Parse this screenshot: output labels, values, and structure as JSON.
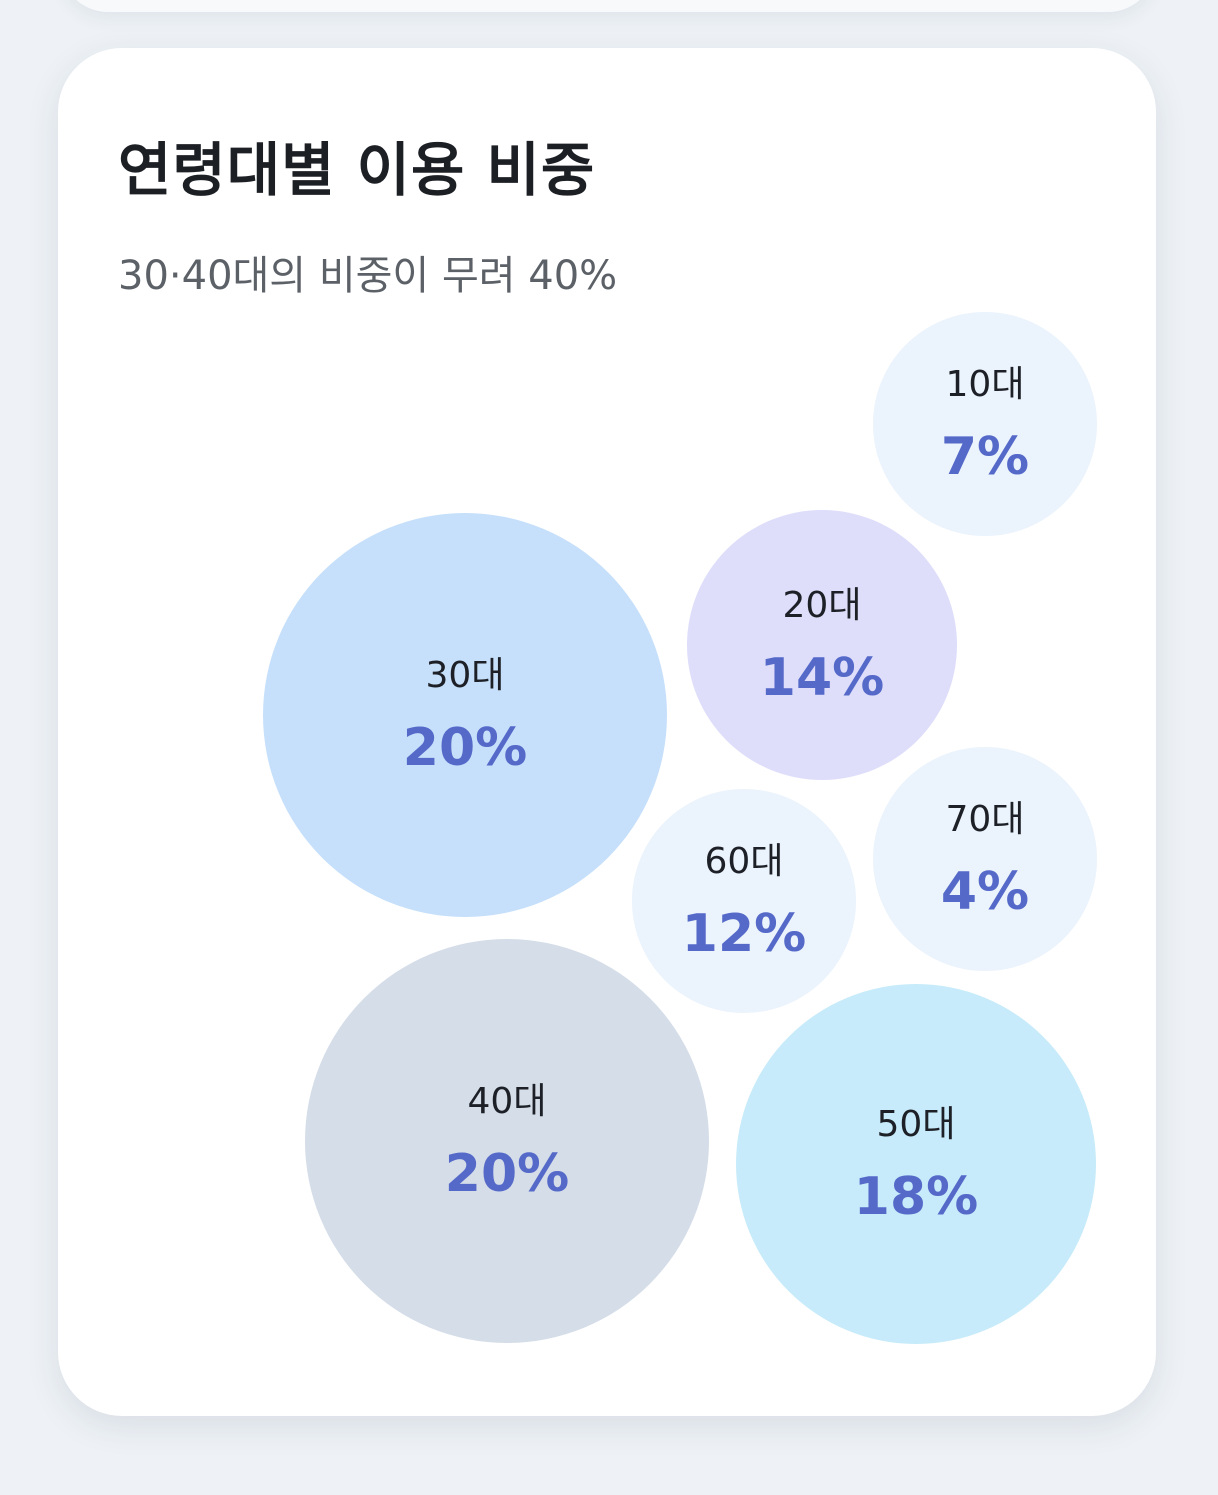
{
  "card": {
    "title": "연령대별 이용 비중",
    "subtitle": "30·40대의 비중이 무려 40%"
  },
  "chart_data": {
    "type": "bubble",
    "title": "연령대별 이용 비중",
    "subtitle": "30·40대의 비중이 무려 40%",
    "value_color": "#5569c9",
    "label_color": "#1d2026",
    "series": [
      {
        "label": "10대",
        "value": 7,
        "value_text": "7%",
        "color": "#ebf3fc"
      },
      {
        "label": "20대",
        "value": 14,
        "value_text": "14%",
        "color": "#dedefb"
      },
      {
        "label": "30대",
        "value": 20,
        "value_text": "20%",
        "color": "#c6e0fb"
      },
      {
        "label": "40대",
        "value": 20,
        "value_text": "20%",
        "color": "#d4dde8"
      },
      {
        "label": "50대",
        "value": 18,
        "value_text": "18%",
        "color": "#c7ebfa"
      },
      {
        "label": "60대",
        "value": 12,
        "value_text": "12%",
        "color": "#ebf3fc"
      },
      {
        "label": "70대",
        "value": 4,
        "value_text": "4%",
        "color": "#ebf3fc"
      }
    ]
  }
}
